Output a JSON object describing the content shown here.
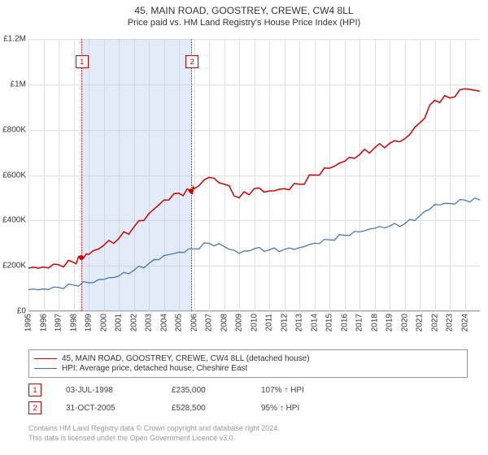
{
  "title": "45, MAIN ROAD, GOOSTREY, CREWE, CW4 8LL",
  "subtitle": "Price paid vs. HM Land Registry's House Price Index (HPI)",
  "chart": {
    "type": "line",
    "background_color": "#ffffff",
    "grid_color": "#e0e0e0",
    "axis_color": "#999999",
    "ylim": [
      0,
      1200000
    ],
    "ytick_step": 200000,
    "y_ticks": [
      "£0",
      "£200K",
      "£400K",
      "£600K",
      "£800K",
      "£1M",
      "£1.2M"
    ],
    "xlim": [
      1995,
      2025
    ],
    "x_ticks": [
      1995,
      1996,
      1997,
      1998,
      1999,
      2000,
      2001,
      2002,
      2003,
      2004,
      2005,
      2006,
      2007,
      2008,
      2009,
      2010,
      2011,
      2012,
      2013,
      2014,
      2015,
      2016,
      2017,
      2018,
      2019,
      2020,
      2021,
      2022,
      2023,
      2024
    ],
    "label_fontsize": 10,
    "band": {
      "from": 1998.5,
      "to": 2005.82,
      "color": "rgba(173,199,232,0.35)"
    },
    "series": [
      {
        "name": "45, MAIN ROAD, GOOSTREY, CREWE, CW4 8LL (detached house)",
        "color": "#cc0000",
        "line_width": 1.5,
        "data": [
          [
            1995,
            190000
          ],
          [
            1996,
            195000
          ],
          [
            1997,
            205000
          ],
          [
            1998,
            215000
          ],
          [
            1998.5,
            235000
          ],
          [
            1999,
            250000
          ],
          [
            2000,
            290000
          ],
          [
            2001,
            320000
          ],
          [
            2002,
            370000
          ],
          [
            2003,
            430000
          ],
          [
            2004,
            490000
          ],
          [
            2005,
            520000
          ],
          [
            2005.82,
            528500
          ],
          [
            2006,
            540000
          ],
          [
            2007,
            590000
          ],
          [
            2008,
            560000
          ],
          [
            2009,
            500000
          ],
          [
            2010,
            540000
          ],
          [
            2011,
            530000
          ],
          [
            2012,
            540000
          ],
          [
            2013,
            560000
          ],
          [
            2014,
            600000
          ],
          [
            2015,
            630000
          ],
          [
            2016,
            660000
          ],
          [
            2017,
            690000
          ],
          [
            2018,
            720000
          ],
          [
            2019,
            740000
          ],
          [
            2020,
            760000
          ],
          [
            2021,
            830000
          ],
          [
            2022,
            930000
          ],
          [
            2023,
            940000
          ],
          [
            2024,
            980000
          ],
          [
            2025,
            970000
          ]
        ]
      },
      {
        "name": "HPI: Average price, detached house, Cheshire East",
        "color": "#3b6fb6",
        "line_width": 1.2,
        "data": [
          [
            1995,
            95000
          ],
          [
            1996,
            98000
          ],
          [
            1997,
            105000
          ],
          [
            1998,
            115000
          ],
          [
            1999,
            125000
          ],
          [
            2000,
            140000
          ],
          [
            2001,
            155000
          ],
          [
            2002,
            180000
          ],
          [
            2003,
            210000
          ],
          [
            2004,
            245000
          ],
          [
            2005,
            260000
          ],
          [
            2006,
            275000
          ],
          [
            2007,
            300000
          ],
          [
            2008,
            285000
          ],
          [
            2009,
            255000
          ],
          [
            2010,
            275000
          ],
          [
            2011,
            270000
          ],
          [
            2012,
            272000
          ],
          [
            2013,
            280000
          ],
          [
            2014,
            300000
          ],
          [
            2015,
            315000
          ],
          [
            2016,
            335000
          ],
          [
            2017,
            350000
          ],
          [
            2018,
            365000
          ],
          [
            2019,
            375000
          ],
          [
            2020,
            385000
          ],
          [
            2021,
            420000
          ],
          [
            2022,
            470000
          ],
          [
            2023,
            475000
          ],
          [
            2024,
            490000
          ],
          [
            2025,
            490000
          ]
        ]
      }
    ],
    "markers": [
      {
        "n": "1",
        "x": 1998.5,
        "y": 235000
      },
      {
        "n": "2",
        "x": 2005.82,
        "y": 528500
      }
    ]
  },
  "legend": [
    {
      "color": "#cc0000",
      "label": "45, MAIN ROAD, GOOSTREY, CREWE, CW4 8LL (detached house)"
    },
    {
      "color": "#3b6fb6",
      "label": "HPI: Average price, detached house, Cheshire East"
    }
  ],
  "sales": [
    {
      "n": "1",
      "date": "03-JUL-1998",
      "price": "£235,000",
      "pct": "107% ↑ HPI"
    },
    {
      "n": "2",
      "date": "31-OCT-2005",
      "price": "£528,500",
      "pct": "95% ↑ HPI"
    }
  ],
  "foot1": "Contains HM Land Registry data © Crown copyright and database right 2024.",
  "foot2": "This data is licensed under the Open Government Licence v3.0."
}
